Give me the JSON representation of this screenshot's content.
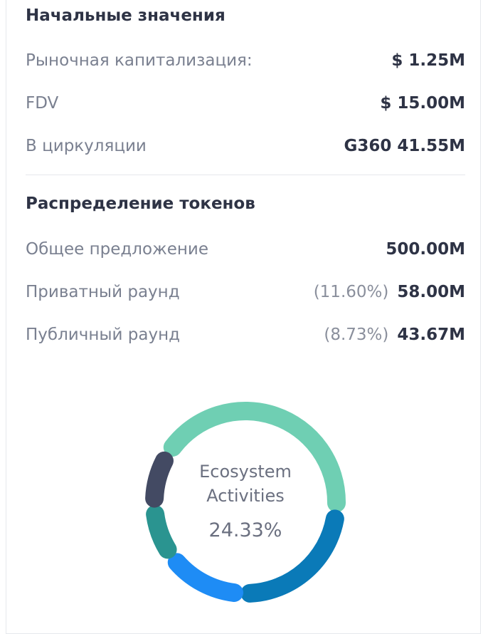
{
  "sections": [
    {
      "title": "Начальные значения",
      "rows": [
        {
          "label": "Рыночная капитализация:",
          "value": "$ 1.25M"
        },
        {
          "label": "FDV",
          "value": "$ 15.00M"
        },
        {
          "label": "В циркуляции",
          "value": "G360 41.55M"
        }
      ]
    },
    {
      "title": "Распределение токенов",
      "rows": [
        {
          "label": "Общее предложение",
          "value": "500.00M"
        },
        {
          "label": "Приватный раунд",
          "share": "(11.60%)",
          "value": "58.00M"
        },
        {
          "label": "Публичный раунд",
          "share": "(8.73%)",
          "value": "43.67M"
        }
      ]
    }
  ],
  "donut": {
    "type": "donut",
    "values": [
      44,
      24.33,
      14,
      8.73,
      9
    ],
    "colors": [
      "#6fcfb3",
      "#0a7ab8",
      "#1e8cf5",
      "#2a9490",
      "#434a63"
    ],
    "center_lines": [
      "Ecosystem",
      "Activities"
    ],
    "center_value": "24.33%"
  }
}
